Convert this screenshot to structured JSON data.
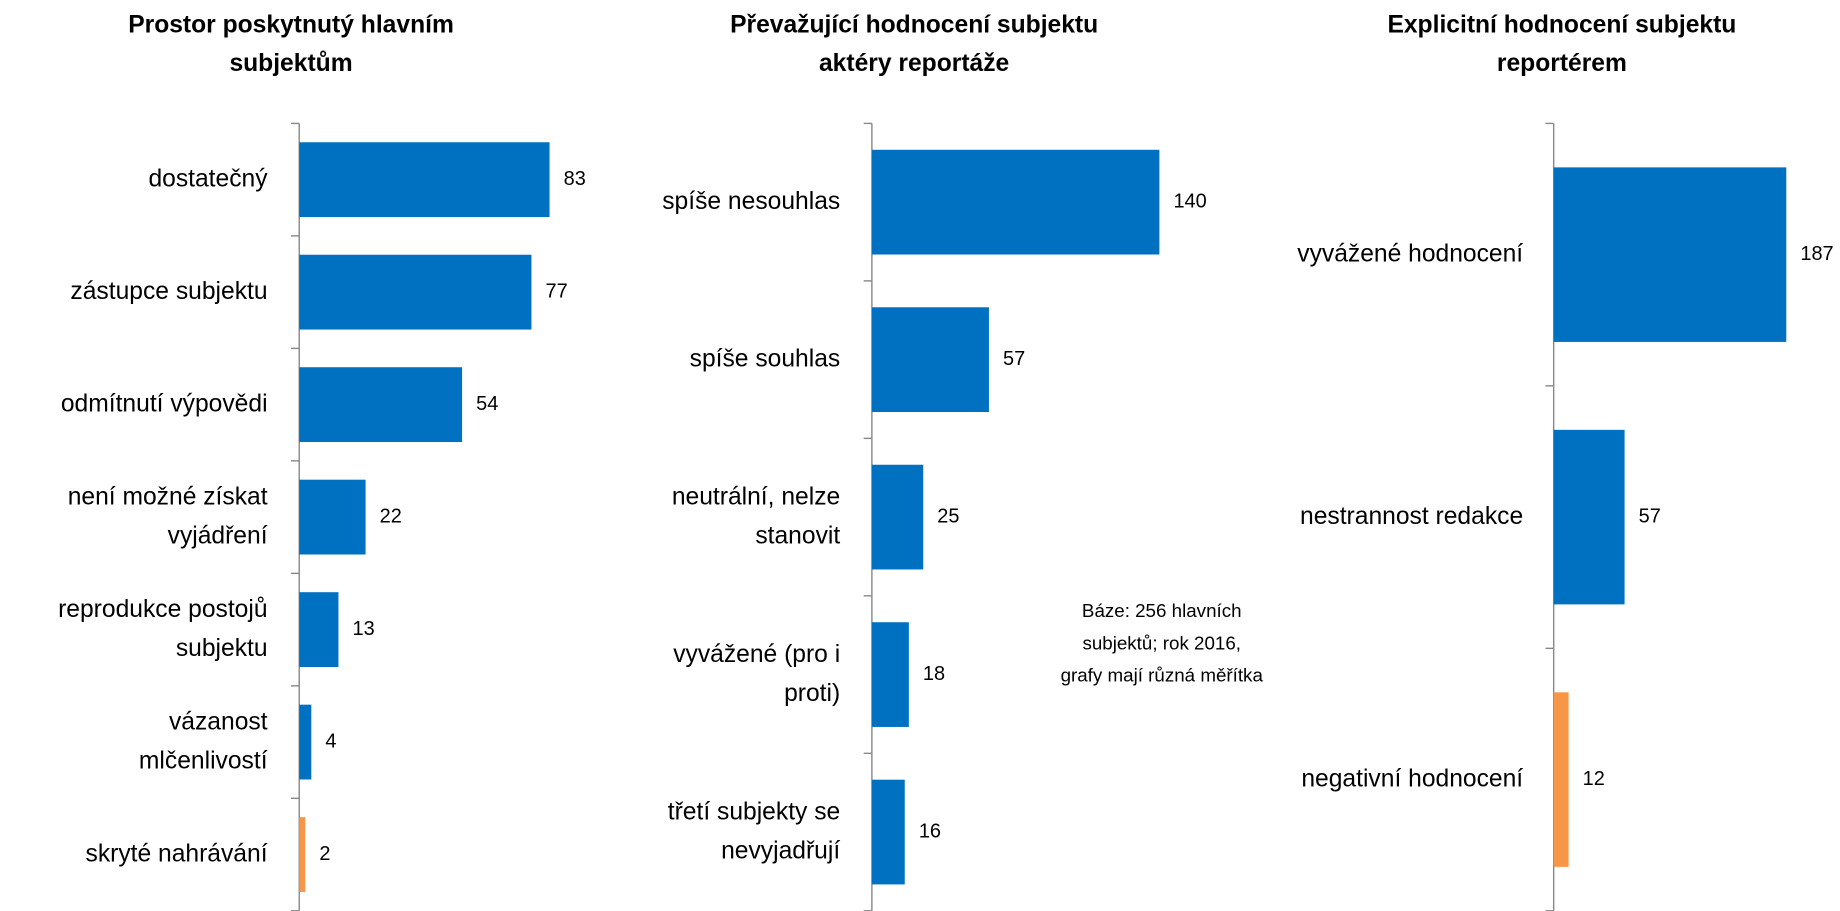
{
  "chart_data": [
    {
      "type": "bar",
      "orientation": "horizontal",
      "title": "Prostor poskytnutý hlavním\nsubjektům",
      "categories": [
        "dostatečný",
        "zástupce subjektu",
        "odmítnutí výpovědi",
        "není možné získat\nvyjádření",
        "reprodukce postojů\nsubjektu",
        "vázanost\nmlčenlivostí",
        "skryté nahrávání"
      ],
      "values": [
        83,
        77,
        54,
        22,
        13,
        4,
        2
      ],
      "colors": [
        "#0070c0",
        "#0070c0",
        "#0070c0",
        "#0070c0",
        "#0070c0",
        "#0070c0",
        "#f79646"
      ]
    },
    {
      "type": "bar",
      "orientation": "horizontal",
      "title": "Převažující hodnocení subjektu\naktéry reportáže",
      "categories": [
        "spíše nesouhlas",
        "spíše souhlas",
        "neutrální, nelze\nstanovit",
        "vyvážené (pro i\nproti)",
        "třetí subjekty se\nnevyjadřují"
      ],
      "values": [
        140,
        57,
        25,
        18,
        16
      ],
      "colors": [
        "#0070c0",
        "#0070c0",
        "#0070c0",
        "#0070c0",
        "#0070c0"
      ]
    },
    {
      "type": "bar",
      "orientation": "horizontal",
      "title": "Explicitní hodnocení subjektu\nreportérem",
      "categories": [
        "vyvážené hodnocení",
        "nestrannost redakce",
        "negativní hodnocení"
      ],
      "values": [
        187,
        57,
        12
      ],
      "colors": [
        "#0070c0",
        "#0070c0",
        "#f79646"
      ]
    }
  ],
  "note": "Báze: 256 hlavních\nsubjektů; rok 2016,\ngrafy mají různá měřítka"
}
